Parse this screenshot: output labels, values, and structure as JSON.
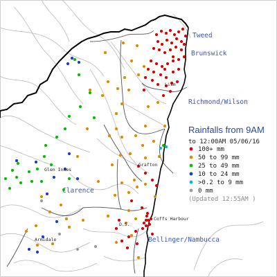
{
  "legend": {
    "title": "Rainfalls from 9AM",
    "subtitle": "to 12:00AM 05/06/16",
    "items": [
      {
        "label": "100+ mm",
        "color": "#e00000"
      },
      {
        "label": "50  to 99 mm",
        "color": "#e08a00"
      },
      {
        "label": "25  to 49 mm",
        "color": "#00c000"
      },
      {
        "label": "10  to 24 mm",
        "color": "#1a3cd0"
      },
      {
        "label": ">0.2 to 9 mm",
        "color": "#00b8e0"
      },
      {
        "label": "0 mm",
        "color": "#9a9a9a"
      }
    ],
    "updated": "(Updated 12:55AM  )"
  },
  "regions": {
    "tweed": "Tweed",
    "brunswick": "Brunswick",
    "richmond_wilson": "Richmond/Wilson",
    "clarence": "Clarence",
    "bellinger_nambucca": "Bellinger/Nambucca"
  },
  "towns": {
    "lismore": "Lism",
    "grafton": "Grafton",
    "glen_innes": "Glen Innes",
    "coffs_harbour": "Coffs Harbour",
    "armidale": "Armidale",
    "dorrigo": "D.S."
  },
  "colors": {
    "state_border": "#000000",
    "catchment": "#555555",
    "river": "#b5b5b5"
  },
  "stations": {
    "heavy": [
      [
        226,
        50
      ],
      [
        233,
        45
      ],
      [
        240,
        48
      ],
      [
        246,
        44
      ],
      [
        252,
        50
      ],
      [
        258,
        46
      ],
      [
        264,
        42
      ],
      [
        268,
        52
      ],
      [
        262,
        60
      ],
      [
        255,
        56
      ],
      [
        248,
        62
      ],
      [
        241,
        58
      ],
      [
        234,
        64
      ],
      [
        228,
        60
      ],
      [
        222,
        70
      ],
      [
        230,
        72
      ],
      [
        238,
        76
      ],
      [
        246,
        72
      ],
      [
        254,
        68
      ],
      [
        262,
        72
      ],
      [
        266,
        82
      ],
      [
        258,
        86
      ],
      [
        250,
        88
      ],
      [
        242,
        92
      ],
      [
        234,
        96
      ],
      [
        226,
        92
      ],
      [
        218,
        88
      ],
      [
        214,
        100
      ],
      [
        222,
        104
      ],
      [
        232,
        108
      ],
      [
        240,
        112
      ],
      [
        250,
        104
      ],
      [
        258,
        100
      ],
      [
        248,
        120
      ],
      [
        240,
        124
      ],
      [
        228,
        122
      ],
      [
        236,
        138
      ],
      [
        246,
        132
      ],
      [
        256,
        118
      ],
      [
        266,
        64
      ],
      [
        210,
        112
      ],
      [
        220,
        116
      ],
      [
        208,
        130
      ],
      [
        250,
        82
      ],
      [
        238,
        100
      ],
      [
        200,
        240
      ],
      [
        210,
        250
      ],
      [
        220,
        260
      ],
      [
        226,
        268
      ],
      [
        190,
        290
      ],
      [
        205,
        300
      ],
      [
        212,
        312
      ],
      [
        214,
        318
      ],
      [
        216,
        324
      ],
      [
        218,
        316
      ],
      [
        211,
        326
      ],
      [
        206,
        330
      ],
      [
        196,
        334
      ],
      [
        186,
        342
      ],
      [
        176,
        348
      ],
      [
        184,
        358
      ],
      [
        168,
        330
      ],
      [
        172,
        318
      ],
      [
        198,
        352
      ],
      [
        220,
        338
      ],
      [
        213,
        308
      ],
      [
        208,
        322
      ],
      [
        211,
        318
      ]
    ],
    "moderate": [
      [
        178,
        62
      ],
      [
        190,
        88
      ],
      [
        198,
        66
      ],
      [
        208,
        96
      ],
      [
        200,
        108
      ],
      [
        180,
        112
      ],
      [
        170,
        128
      ],
      [
        186,
        130
      ],
      [
        176,
        150
      ],
      [
        168,
        164
      ],
      [
        156,
        118
      ],
      [
        148,
        138
      ],
      [
        152,
        76
      ],
      [
        158,
        196
      ],
      [
        176,
        198
      ],
      [
        196,
        196
      ],
      [
        210,
        182
      ],
      [
        222,
        204
      ],
      [
        238,
        182
      ],
      [
        206,
        210
      ],
      [
        188,
        222
      ],
      [
        174,
        224
      ],
      [
        162,
        238
      ],
      [
        210,
        228
      ],
      [
        230,
        226
      ],
      [
        194,
        260
      ],
      [
        210,
        266
      ],
      [
        224,
        284
      ],
      [
        198,
        270
      ],
      [
        186,
        278
      ],
      [
        176,
        264
      ],
      [
        166,
        282
      ],
      [
        186,
        304
      ],
      [
        196,
        316
      ],
      [
        182,
        322
      ],
      [
        190,
        340
      ],
      [
        200,
        372
      ],
      [
        168,
        350
      ],
      [
        156,
        312
      ],
      [
        120,
        318
      ],
      [
        96,
        316
      ],
      [
        72,
        306
      ],
      [
        52,
        326
      ],
      [
        38,
        334
      ],
      [
        54,
        354
      ],
      [
        76,
        352
      ],
      [
        100,
        328
      ],
      [
        60,
        284
      ],
      [
        88,
        296
      ],
      [
        130,
        130
      ],
      [
        126,
        186
      ],
      [
        112,
        226
      ],
      [
        142,
        262
      ],
      [
        168,
        186
      ],
      [
        214,
        154
      ],
      [
        228,
        148
      ]
    ],
    "mid": [
      [
        108,
        86
      ],
      [
        114,
        108
      ],
      [
        130,
        134
      ],
      [
        116,
        154
      ],
      [
        136,
        170
      ],
      [
        100,
        168
      ],
      [
        94,
        186
      ],
      [
        82,
        198
      ],
      [
        66,
        210
      ],
      [
        64,
        226
      ],
      [
        74,
        238
      ],
      [
        54,
        244
      ],
      [
        42,
        248
      ],
      [
        18,
        246
      ],
      [
        24,
        256
      ],
      [
        8,
        258
      ],
      [
        14,
        272
      ],
      [
        30,
        264
      ],
      [
        46,
        262
      ],
      [
        60,
        262
      ],
      [
        26,
        236
      ],
      [
        236,
        210
      ],
      [
        100,
        258
      ],
      [
        92,
        274
      ]
    ],
    "light": [
      [
        98,
        92
      ],
      [
        104,
        84
      ],
      [
        114,
        90
      ],
      [
        24,
        232
      ],
      [
        52,
        234
      ],
      [
        78,
        256
      ],
      [
        94,
        244
      ],
      [
        100,
        222
      ],
      [
        112,
        258
      ],
      [
        68,
        280
      ],
      [
        82,
        320
      ],
      [
        54,
        364
      ],
      [
        62,
        342
      ],
      [
        42,
        360
      ]
    ],
    "trace": [
      [
        240,
        212
      ],
      [
        232,
        214
      ]
    ],
    "dry": [
      [
        60,
        290
      ],
      [
        86,
        338
      ],
      [
        138,
        356
      ],
      [
        112,
        360
      ]
    ]
  }
}
